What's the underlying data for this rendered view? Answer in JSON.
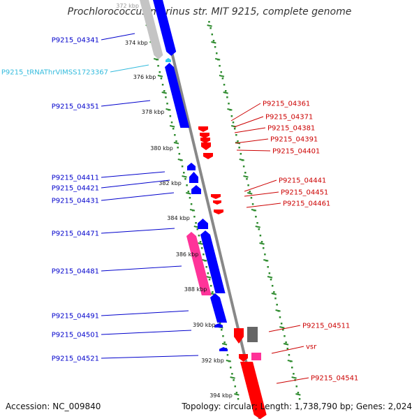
{
  "title": "Prochlorococcus marinus str. MIT 9215, complete genome",
  "accession": "Accession: NC_009840",
  "summary": "Topology: circular; Length: 1,738,790 bp; Genes: 2,024",
  "colors": {
    "forward_cds": "#0000ff",
    "reverse_cds": "#ff0000",
    "rna": "#33ccee",
    "pink": "#ff3399",
    "gray": "#999999",
    "tick_green": "#2e8b2e",
    "backbone": "#888888"
  },
  "kbp_ticks": [
    "372 kbp",
    "374 kbp",
    "376 kbp",
    "378 kbp",
    "380 kbp",
    "382 kbp",
    "384 kbp",
    "386 kbp",
    "388 kbp",
    "390 kbp",
    "392 kbp",
    "394 kbp"
  ],
  "left_labels": [
    {
      "id": "P9215_04341",
      "color": "#0000cc"
    },
    {
      "id": "P9215_tRNAThrVIMSS1723367",
      "color": "#33bbdd"
    },
    {
      "id": "P9215_04351",
      "color": "#0000cc"
    },
    {
      "id": "P9215_04411",
      "color": "#0000cc"
    },
    {
      "id": "P9215_04421",
      "color": "#0000cc"
    },
    {
      "id": "P9215_04431",
      "color": "#0000cc"
    },
    {
      "id": "P9215_04471",
      "color": "#0000cc"
    },
    {
      "id": "P9215_04481",
      "color": "#0000cc"
    },
    {
      "id": "P9215_04491",
      "color": "#0000cc"
    },
    {
      "id": "P9215_04501",
      "color": "#0000cc"
    },
    {
      "id": "P9215_04521",
      "color": "#0000cc"
    }
  ],
  "right_labels": [
    {
      "id": "P9215_04361",
      "color": "#cc0000"
    },
    {
      "id": "P9215_04371",
      "color": "#cc0000"
    },
    {
      "id": "P9215_04381",
      "color": "#cc0000"
    },
    {
      "id": "P9215_04391",
      "color": "#cc0000"
    },
    {
      "id": "P9215_04401",
      "color": "#cc0000"
    },
    {
      "id": "P9215_04441",
      "color": "#cc0000"
    },
    {
      "id": "P9215_04451",
      "color": "#cc0000"
    },
    {
      "id": "P9215_04461",
      "color": "#cc0000"
    },
    {
      "id": "P9215_04511",
      "color": "#cc0000"
    },
    {
      "id": "vsr",
      "color": "#cc0000"
    },
    {
      "id": "P9215_04541",
      "color": "#cc0000"
    }
  ]
}
